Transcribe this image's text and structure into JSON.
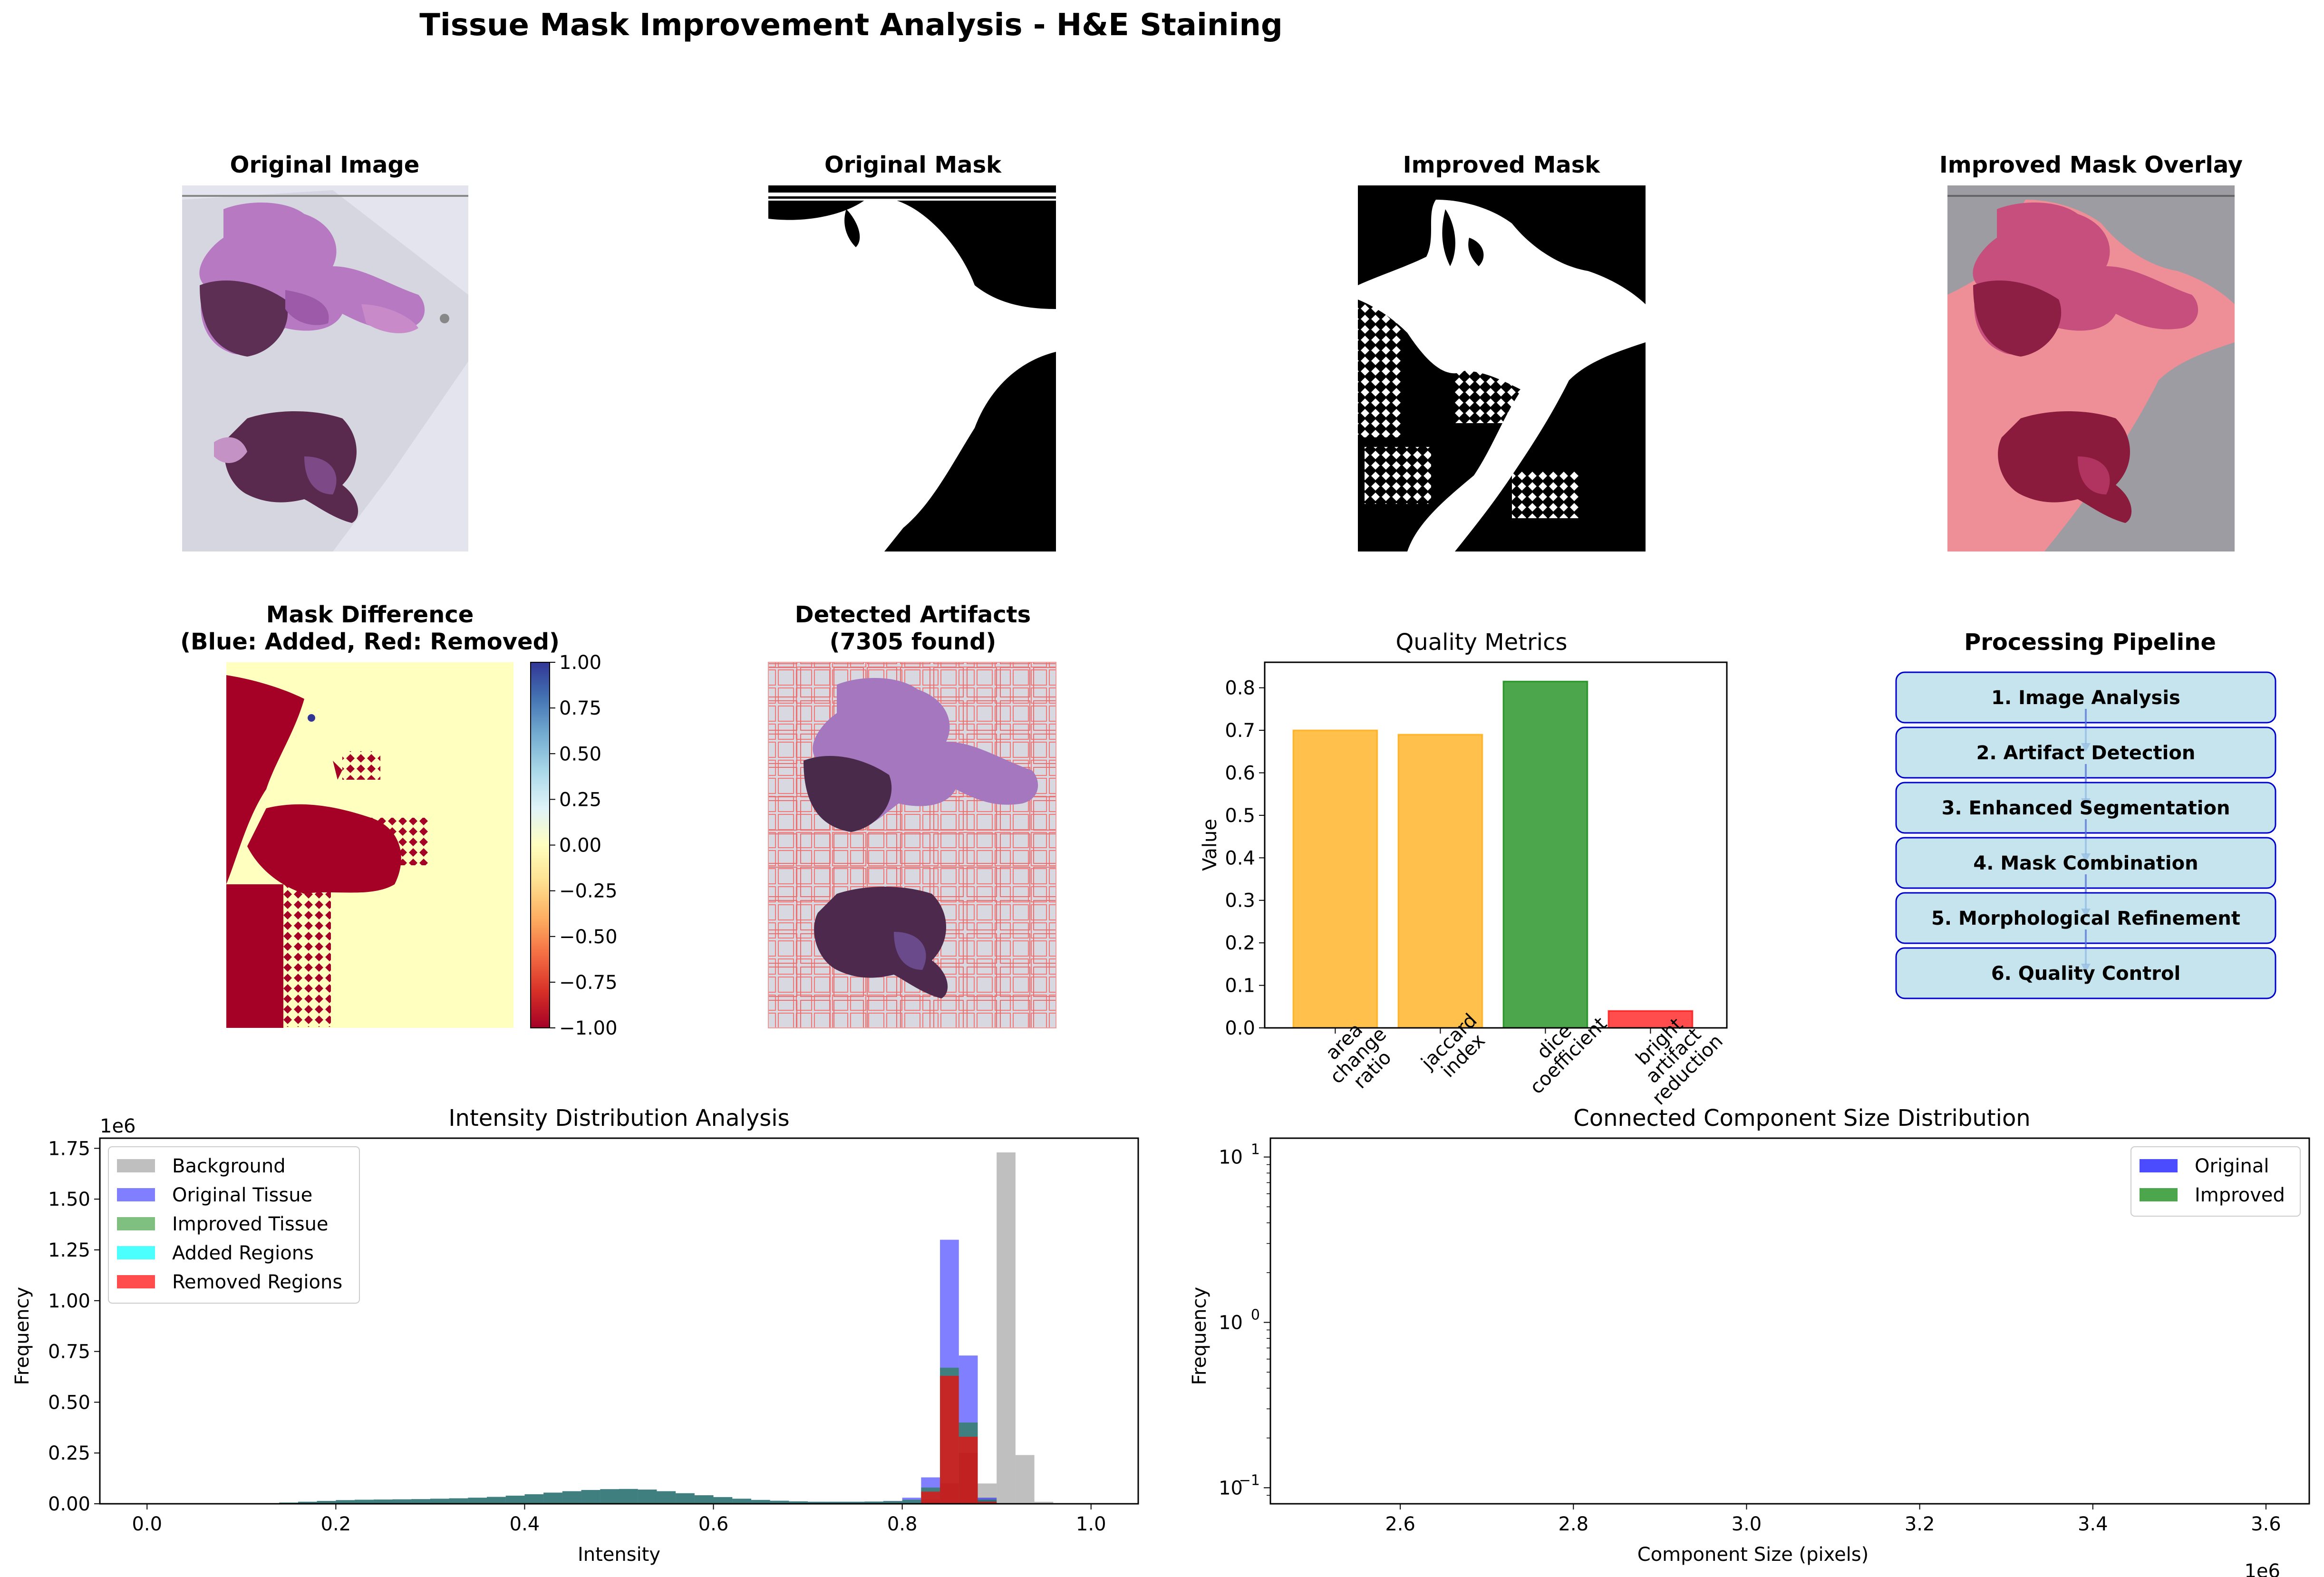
{
  "suptitle": "Tissue Mask Improvement Analysis - H&E Staining",
  "panels": {
    "original_image": {
      "title": "Original Image"
    },
    "original_mask": {
      "title": "Original Mask"
    },
    "improved_mask": {
      "title": "Improved Mask"
    },
    "overlay": {
      "title": "Improved Mask Overlay"
    },
    "mask_difference": {
      "title_line1": "Mask Difference",
      "title_line2": "(Blue: Added, Red: Removed)",
      "colorbar_ticks": [
        "1.00",
        "0.75",
        "0.50",
        "0.25",
        "0.00",
        "−0.25",
        "−0.50",
        "−0.75",
        "−1.00"
      ]
    },
    "artifacts": {
      "title_line1": "Detected Artifacts",
      "title_line2": "(7305 found)"
    },
    "pipeline": {
      "title": "Processing Pipeline",
      "steps": [
        "1. Image Analysis",
        "2. Artifact Detection",
        "3. Enhanced Segmentation",
        "4. Mask Combination",
        "5. Morphological Refinement",
        "6. Quality Control"
      ]
    }
  },
  "chart_data": [
    {
      "type": "bar",
      "title": "Quality Metrics",
      "ylabel": "Value",
      "categories": [
        "area\nchange\nratio",
        "jaccard\nindex",
        "dice\ncoefficient",
        "bright\nartifact\nreduction"
      ],
      "values": [
        0.7,
        0.69,
        0.815,
        0.04
      ],
      "colors": [
        "#ffa500",
        "#ffa500",
        "#008000",
        "#ff0000"
      ],
      "ylim": [
        0,
        0.86
      ],
      "yticks": [
        "0.0",
        "0.1",
        "0.2",
        "0.3",
        "0.4",
        "0.5",
        "0.6",
        "0.7",
        "0.8"
      ]
    },
    {
      "type": "histogram",
      "title": "Intensity Distribution Analysis",
      "xlabel": "Intensity",
      "ylabel": "Frequency",
      "y_multiplier": "1e6",
      "xlim": [
        -0.05,
        1.05
      ],
      "ylim": [
        0,
        1.8
      ],
      "xticks": [
        "0.0",
        "0.2",
        "0.4",
        "0.6",
        "0.8",
        "1.0"
      ],
      "yticks": [
        "0.00",
        "0.25",
        "0.50",
        "0.75",
        "1.00",
        "1.25",
        "1.50",
        "1.75"
      ],
      "legend": "top-left",
      "bin_width": 0.02,
      "series": [
        {
          "name": "Background",
          "color": "#808080",
          "opacity": 0.5,
          "bins": [
            {
              "x": 0.82,
              "y": 0.02
            },
            {
              "x": 0.84,
              "y": 0.1
            },
            {
              "x": 0.86,
              "y": 0.25
            },
            {
              "x": 0.88,
              "y": 0.1
            },
            {
              "x": 0.9,
              "y": 1.73
            },
            {
              "x": 0.92,
              "y": 0.24
            },
            {
              "x": 0.94,
              "y": 0.01
            }
          ]
        },
        {
          "name": "Original Tissue",
          "color": "#0000ff",
          "opacity": 0.5,
          "bins": [
            {
              "x": 0.12,
              "y": 0.003
            },
            {
              "x": 0.14,
              "y": 0.006
            },
            {
              "x": 0.16,
              "y": 0.01
            },
            {
              "x": 0.18,
              "y": 0.014
            },
            {
              "x": 0.2,
              "y": 0.018
            },
            {
              "x": 0.22,
              "y": 0.02
            },
            {
              "x": 0.24,
              "y": 0.021
            },
            {
              "x": 0.26,
              "y": 0.022
            },
            {
              "x": 0.28,
              "y": 0.023
            },
            {
              "x": 0.3,
              "y": 0.025
            },
            {
              "x": 0.32,
              "y": 0.027
            },
            {
              "x": 0.34,
              "y": 0.03
            },
            {
              "x": 0.36,
              "y": 0.034
            },
            {
              "x": 0.38,
              "y": 0.04
            },
            {
              "x": 0.4,
              "y": 0.047
            },
            {
              "x": 0.42,
              "y": 0.055
            },
            {
              "x": 0.44,
              "y": 0.062
            },
            {
              "x": 0.46,
              "y": 0.068
            },
            {
              "x": 0.48,
              "y": 0.072
            },
            {
              "x": 0.5,
              "y": 0.073
            },
            {
              "x": 0.52,
              "y": 0.07
            },
            {
              "x": 0.54,
              "y": 0.062
            },
            {
              "x": 0.56,
              "y": 0.052
            },
            {
              "x": 0.58,
              "y": 0.042
            },
            {
              "x": 0.6,
              "y": 0.033
            },
            {
              "x": 0.62,
              "y": 0.025
            },
            {
              "x": 0.64,
              "y": 0.019
            },
            {
              "x": 0.66,
              "y": 0.015
            },
            {
              "x": 0.68,
              "y": 0.012
            },
            {
              "x": 0.7,
              "y": 0.01
            },
            {
              "x": 0.72,
              "y": 0.01
            },
            {
              "x": 0.74,
              "y": 0.01
            },
            {
              "x": 0.76,
              "y": 0.011
            },
            {
              "x": 0.78,
              "y": 0.014
            },
            {
              "x": 0.8,
              "y": 0.03
            },
            {
              "x": 0.82,
              "y": 0.13
            },
            {
              "x": 0.84,
              "y": 1.3
            },
            {
              "x": 0.86,
              "y": 0.73
            },
            {
              "x": 0.88,
              "y": 0.03
            }
          ]
        },
        {
          "name": "Improved Tissue",
          "color": "#008000",
          "opacity": 0.5,
          "bins": [
            {
              "x": 0.12,
              "y": 0.003
            },
            {
              "x": 0.14,
              "y": 0.006
            },
            {
              "x": 0.16,
              "y": 0.01
            },
            {
              "x": 0.18,
              "y": 0.014
            },
            {
              "x": 0.2,
              "y": 0.018
            },
            {
              "x": 0.22,
              "y": 0.02
            },
            {
              "x": 0.24,
              "y": 0.021
            },
            {
              "x": 0.26,
              "y": 0.022
            },
            {
              "x": 0.28,
              "y": 0.023
            },
            {
              "x": 0.3,
              "y": 0.025
            },
            {
              "x": 0.32,
              "y": 0.027
            },
            {
              "x": 0.34,
              "y": 0.03
            },
            {
              "x": 0.36,
              "y": 0.034
            },
            {
              "x": 0.38,
              "y": 0.04
            },
            {
              "x": 0.4,
              "y": 0.047
            },
            {
              "x": 0.42,
              "y": 0.055
            },
            {
              "x": 0.44,
              "y": 0.062
            },
            {
              "x": 0.46,
              "y": 0.068
            },
            {
              "x": 0.48,
              "y": 0.072
            },
            {
              "x": 0.5,
              "y": 0.073
            },
            {
              "x": 0.52,
              "y": 0.07
            },
            {
              "x": 0.54,
              "y": 0.062
            },
            {
              "x": 0.56,
              "y": 0.052
            },
            {
              "x": 0.58,
              "y": 0.042
            },
            {
              "x": 0.6,
              "y": 0.033
            },
            {
              "x": 0.62,
              "y": 0.025
            },
            {
              "x": 0.64,
              "y": 0.019
            },
            {
              "x": 0.66,
              "y": 0.015
            },
            {
              "x": 0.68,
              "y": 0.012
            },
            {
              "x": 0.7,
              "y": 0.01
            },
            {
              "x": 0.72,
              "y": 0.01
            },
            {
              "x": 0.74,
              "y": 0.01
            },
            {
              "x": 0.76,
              "y": 0.011
            },
            {
              "x": 0.78,
              "y": 0.013
            },
            {
              "x": 0.8,
              "y": 0.02
            },
            {
              "x": 0.82,
              "y": 0.08
            },
            {
              "x": 0.84,
              "y": 0.67
            },
            {
              "x": 0.86,
              "y": 0.4
            },
            {
              "x": 0.88,
              "y": 0.02
            }
          ]
        },
        {
          "name": "Added Regions",
          "color": "#00ffff",
          "opacity": 0.7,
          "bins": [
            {
              "x": 0.84,
              "y": 0.005
            },
            {
              "x": 0.86,
              "y": 0.004
            }
          ]
        },
        {
          "name": "Removed Regions",
          "color": "#ff0000",
          "opacity": 0.7,
          "bins": [
            {
              "x": 0.82,
              "y": 0.06
            },
            {
              "x": 0.84,
              "y": 0.63
            },
            {
              "x": 0.86,
              "y": 0.33
            },
            {
              "x": 0.88,
              "y": 0.01
            }
          ]
        }
      ]
    },
    {
      "type": "histogram",
      "title": "Connected Component Size Distribution",
      "xlabel": "Component Size (pixels)",
      "ylabel": "Frequency",
      "x_multiplier": "1e6",
      "yscale": "log",
      "xlim": [
        2.45,
        3.65
      ],
      "ylim": [
        0.08,
        13
      ],
      "xticks": [
        "2.6",
        "2.8",
        "3.0",
        "3.2",
        "3.4",
        "3.6"
      ],
      "yticks": [
        {
          "value": 0.1,
          "base": "10",
          "exp": "−1"
        },
        {
          "value": 1,
          "base": "10",
          "exp": "0"
        },
        {
          "value": 10,
          "base": "10",
          "exp": "1"
        }
      ],
      "legend": "top-right",
      "series": [
        {
          "name": "Original",
          "color": "#0000ff",
          "opacity": 0.7,
          "bins": []
        },
        {
          "name": "Improved",
          "color": "#008000",
          "opacity": 0.7,
          "bins": []
        }
      ]
    }
  ]
}
